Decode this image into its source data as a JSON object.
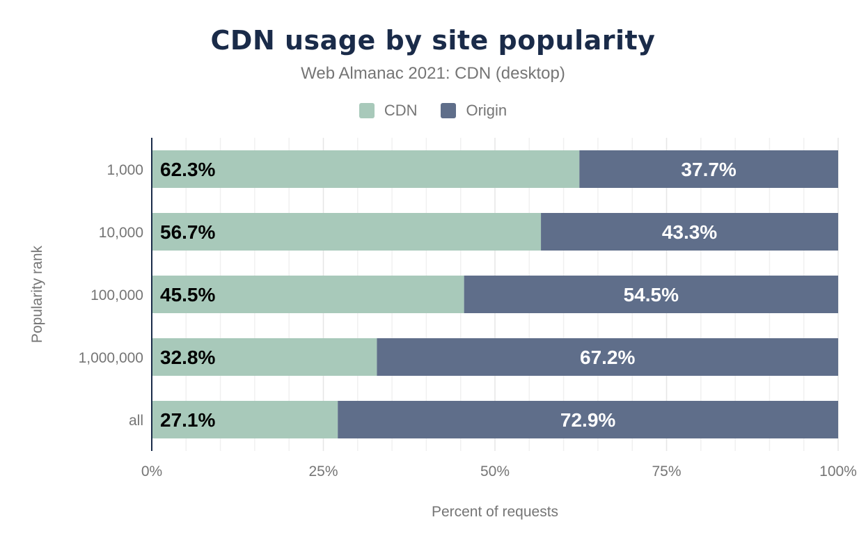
{
  "chart_data": {
    "type": "bar",
    "stacked": true,
    "orientation": "horizontal",
    "title": "CDN usage by site popularity",
    "subtitle": "Web Almanac 2021: CDN (desktop)",
    "xlabel": "Percent of requests",
    "ylabel": "Popularity rank",
    "categories": [
      "1,000",
      "10,000",
      "100,000",
      "1,000,000",
      "all"
    ],
    "series": [
      {
        "name": "CDN",
        "color": "#a8c9ba",
        "values": [
          62.3,
          56.7,
          45.5,
          32.8,
          27.1
        ],
        "labels": [
          "62.3%",
          "56.7%",
          "45.5%",
          "32.8%",
          "27.1%"
        ]
      },
      {
        "name": "Origin",
        "color": "#5f6e8a",
        "values": [
          37.7,
          43.3,
          54.5,
          67.2,
          72.9
        ],
        "labels": [
          "37.7%",
          "43.3%",
          "54.5%",
          "67.2%",
          "72.9%"
        ]
      }
    ],
    "xlim": [
      0,
      100
    ],
    "xticks": [
      "0%",
      "25%",
      "50%",
      "75%",
      "100%"
    ],
    "grid": true,
    "legend": "top-center"
  }
}
